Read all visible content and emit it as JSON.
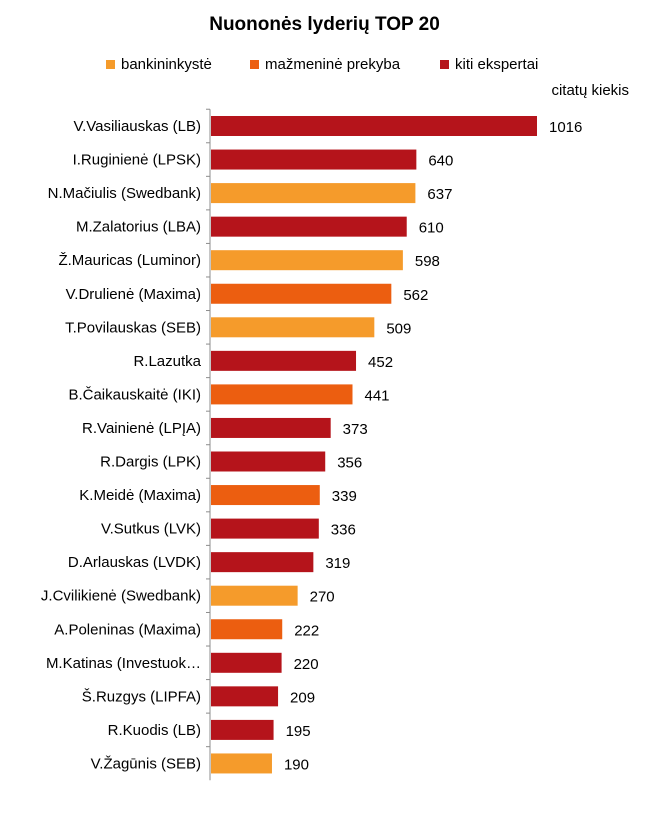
{
  "chart_data": {
    "type": "bar",
    "orientation": "horizontal",
    "title": "Nuononės lyderių TOP 20",
    "unit_label": "citatų kiekis",
    "legend_position": "top",
    "grid": false,
    "xlim": [
      0,
      1016
    ],
    "groups": [
      {
        "name": "bankininkystė",
        "color": "#F59B2B"
      },
      {
        "name": "mažmeninė prekyba",
        "color": "#EC5E10"
      },
      {
        "name": "kiti ekspertai",
        "color": "#B5141B"
      }
    ],
    "categories": [
      "V.Vasiliauskas (LB)",
      "I.Ruginienė (LPSK)",
      "N.Mačiulis (Swedbank)",
      "M.Zalatorius (LBA)",
      "Ž.Mauricas (Luminor)",
      "V.Drulienė (Maxima)",
      "T.Povilauskas (SEB)",
      "R.Lazutka",
      "B.Čaikauskaitė (IKI)",
      "R.Vainienė (LPĮA)",
      "R.Dargis (LPK)",
      "K.Meidė (Maxima)",
      "V.Sutkus (LVK)",
      "D.Arlauskas (LVDK)",
      "J.Cvilikienė (Swedbank)",
      "A.Poleninas (Maxima)",
      "M.Katinas (Investuok…",
      "Š.Ruzgys (LIPFA)",
      "R.Kuodis (LB)",
      "V.Žagūnis (SEB)"
    ],
    "values": [
      1016,
      640,
      637,
      610,
      598,
      562,
      509,
      452,
      441,
      373,
      356,
      339,
      336,
      319,
      270,
      222,
      220,
      209,
      195,
      190
    ],
    "group_of": [
      2,
      2,
      0,
      2,
      0,
      1,
      0,
      2,
      1,
      2,
      2,
      1,
      2,
      2,
      0,
      1,
      2,
      2,
      2,
      0
    ]
  }
}
